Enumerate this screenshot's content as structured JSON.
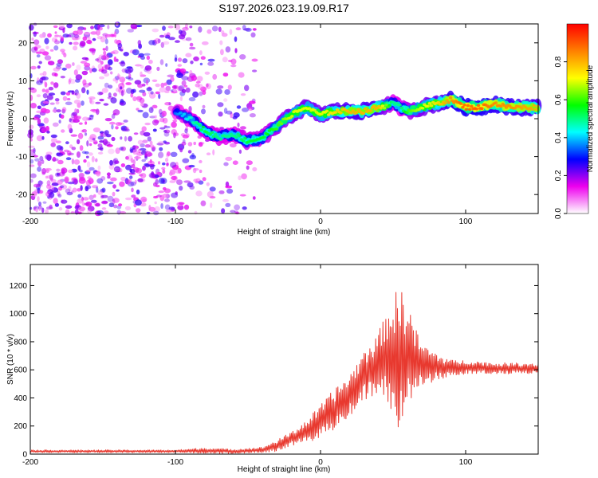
{
  "figure_title": "S197.2026.023.19.09.R17",
  "chart_data": [
    {
      "type": "heatmap",
      "title": "S197.2026.023.19.09.R17",
      "xlabel": "Height of straight line (km)",
      "ylabel": "Frequency (Hz)",
      "xlim": [
        -200,
        150
      ],
      "ylim": [
        -25,
        25
      ],
      "x_ticks": [
        -200,
        -100,
        0,
        100
      ],
      "x_tick_labels": [
        "-200",
        "-100",
        "0",
        "100"
      ],
      "y_ticks": [
        -20,
        -10,
        0,
        10,
        20
      ],
      "y_tick_labels": [
        "-20",
        "-10",
        "0",
        "10",
        "20"
      ],
      "colorbar": {
        "label": "Normalized spectral amplitude",
        "range": [
          0,
          1
        ],
        "ticks": [
          0,
          0.2,
          0.4,
          0.6,
          0.8
        ],
        "tick_labels": [
          "0.0",
          "0.2",
          "0.4",
          "0.6",
          "0.8"
        ],
        "colors": [
          "#ffffff",
          "#ee00ee",
          "#0000ff",
          "#00ffff",
          "#00ff00",
          "#ffff00",
          "#ff8000",
          "#ff0000"
        ]
      },
      "ridge": {
        "description": "frequency of peak spectral amplitude vs height",
        "x": [
          -100,
          -90,
          -80,
          -70,
          -60,
          -50,
          -40,
          -30,
          -20,
          -10,
          0,
          10,
          20,
          30,
          40,
          50,
          55,
          60,
          70,
          80,
          90,
          100,
          110,
          120,
          130,
          150
        ],
        "y": [
          2,
          0,
          -3,
          -5,
          -4,
          -6,
          -5,
          -2,
          1,
          3,
          1,
          2,
          2,
          2,
          3,
          4,
          3,
          2,
          3,
          4,
          5,
          3,
          3,
          4,
          3,
          3
        ],
        "amplitude": [
          0.35,
          0.45,
          0.55,
          0.5,
          0.5,
          0.55,
          0.55,
          0.6,
          0.7,
          0.7,
          0.7,
          0.75,
          0.8,
          0.8,
          0.8,
          0.5,
          0.5,
          0.6,
          0.7,
          0.75,
          0.85,
          0.9,
          0.9,
          0.85,
          0.85,
          0.8
        ]
      }
    },
    {
      "type": "line",
      "xlabel": "Height of straight line (km)",
      "ylabel": "SNR (10 * v/v)",
      "xlim": [
        -200,
        150
      ],
      "ylim": [
        0,
        1350
      ],
      "x_ticks": [
        -200,
        -100,
        0,
        100
      ],
      "x_tick_labels": [
        "-200",
        "-100",
        "0",
        "100"
      ],
      "y_ticks": [
        0,
        200,
        400,
        600,
        800,
        1000,
        1200
      ],
      "y_tick_labels": [
        "0",
        "200",
        "400",
        "600",
        "800",
        "1000",
        "1200"
      ],
      "color": "#e8392f",
      "series": [
        {
          "name": "SNR",
          "x": [
            -200,
            -150,
            -100,
            -80,
            -60,
            -40,
            -30,
            -20,
            -10,
            0,
            10,
            20,
            30,
            40,
            45,
            50,
            55,
            60,
            65,
            70,
            80,
            90,
            100,
            120,
            150
          ],
          "y_mid": [
            20,
            20,
            20,
            25,
            20,
            30,
            60,
            110,
            160,
            230,
            320,
            420,
            560,
            650,
            700,
            680,
            650,
            700,
            660,
            640,
            620,
            610,
            620,
            610,
            610
          ],
          "y_amp": [
            10,
            10,
            10,
            20,
            15,
            20,
            40,
            50,
            80,
            120,
            150,
            150,
            180,
            220,
            300,
            450,
            550,
            420,
            250,
            150,
            100,
            60,
            50,
            40,
            40
          ]
        }
      ]
    }
  ]
}
